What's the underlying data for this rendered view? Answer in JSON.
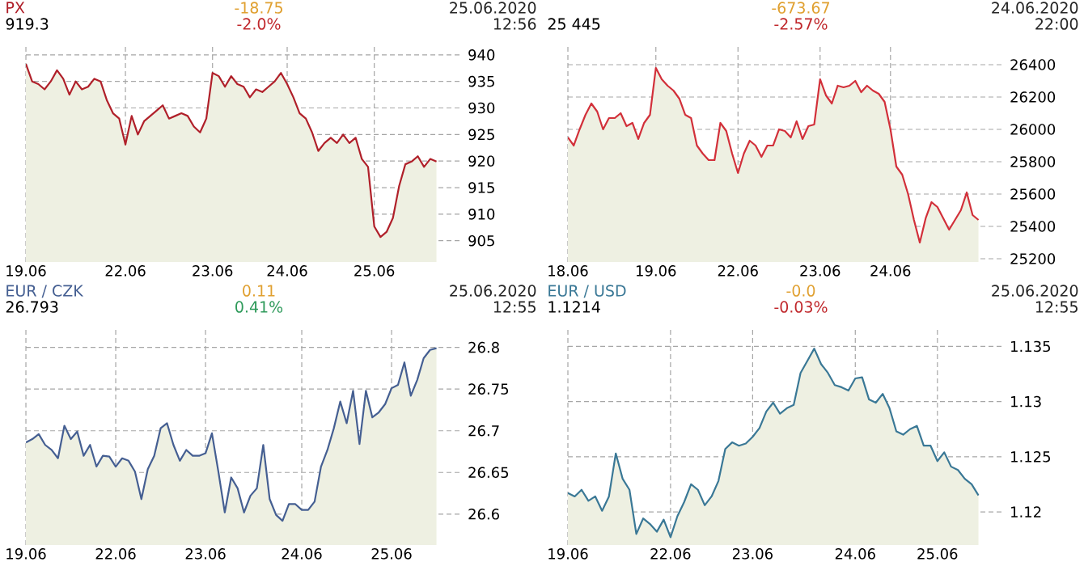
{
  "chart_data": [
    {
      "type": "area",
      "title": "PX",
      "annotations": [
        "919.3",
        "-18.75",
        "-2.0%",
        "25.06.2020",
        "12:56"
      ],
      "color": "#b0202a",
      "grid": true,
      "ylim": [
        901,
        941.5
      ],
      "yticks": [
        905,
        910,
        915,
        920,
        925,
        930,
        935,
        940
      ],
      "categories": [
        "19.06",
        null,
        null,
        null,
        null,
        null,
        null,
        null,
        null,
        null,
        null,
        null,
        null,
        null,
        null,
        null,
        "22.06",
        null,
        null,
        null,
        null,
        null,
        null,
        null,
        null,
        null,
        null,
        null,
        null,
        null,
        "23.06",
        null,
        null,
        null,
        null,
        null,
        null,
        null,
        null,
        null,
        null,
        null,
        "24.06",
        null,
        null,
        null,
        null,
        null,
        null,
        null,
        null,
        null,
        null,
        null,
        null,
        null,
        "25.06",
        null,
        null,
        null,
        null,
        null,
        null,
        null,
        null,
        null,
        null
      ],
      "values": [
        938.3,
        935,
        934.5,
        933.5,
        935,
        937.1,
        935.5,
        932.5,
        935,
        933.5,
        934,
        935.5,
        935,
        931.5,
        929,
        928,
        923.1,
        928.5,
        925,
        927.5,
        928.5,
        929.5,
        930.5,
        928,
        928.5,
        929,
        928.5,
        926.5,
        925.4,
        928,
        936.6,
        936,
        934,
        936,
        934.5,
        934,
        932,
        933.5,
        933,
        934,
        935,
        936.6,
        934.5,
        932,
        929,
        928,
        925.4,
        921.9,
        923.4,
        924.4,
        923.4,
        925,
        923.4,
        924.4,
        920.4,
        918.9,
        907.7,
        905.7,
        906.7,
        909.3,
        915.3,
        919.4,
        919.9,
        920.9,
        918.9,
        920.4,
        919.9
      ]
    },
    {
      "type": "area",
      "annotations": [
        "25 445",
        "-673.67",
        "-2.57%",
        "24.06.2020",
        "22:00"
      ],
      "color": "#d2303a",
      "grid": true,
      "ylim": [
        25180,
        26510
      ],
      "yticks": [
        25200,
        25400,
        25600,
        25800,
        26000,
        26200,
        26400
      ],
      "categories": [
        "18.06",
        null,
        null,
        null,
        null,
        null,
        null,
        null,
        null,
        null,
        null,
        null,
        null,
        null,
        null,
        "19.06",
        null,
        null,
        null,
        null,
        null,
        null,
        null,
        null,
        null,
        null,
        null,
        null,
        null,
        "22.06",
        null,
        null,
        null,
        null,
        null,
        null,
        null,
        null,
        null,
        null,
        null,
        null,
        null,
        "23.06",
        null,
        null,
        null,
        null,
        null,
        null,
        null,
        null,
        null,
        null,
        null,
        "24.06",
        null,
        null,
        null,
        null,
        null,
        null,
        null,
        null,
        null,
        null,
        null,
        null,
        null,
        null,
        null
      ],
      "values": [
        25950,
        25900,
        26000,
        26090,
        26160,
        26110,
        26000,
        26070,
        26070,
        26100,
        26020,
        26040,
        25940,
        26040,
        26090,
        26380,
        26310,
        26270,
        26240,
        26190,
        26090,
        26070,
        25900,
        25850,
        25810,
        25810,
        26040,
        25990,
        25850,
        25730,
        25850,
        25930,
        25900,
        25830,
        25900,
        25900,
        26000,
        25990,
        25950,
        26050,
        25940,
        26020,
        26030,
        26310,
        26210,
        26160,
        26270,
        26260,
        26270,
        26300,
        26230,
        26270,
        26240,
        26220,
        26170,
        26000,
        25770,
        25720,
        25600,
        25440,
        25300,
        25450,
        25550,
        25520,
        25450,
        25380,
        25440,
        25500,
        25610,
        25470,
        25440
      ]
    },
    {
      "type": "area",
      "title": "EUR / CZK",
      "annotations": [
        "26.793",
        "0.11",
        "0.41%",
        "25.06.2020",
        "12:55"
      ],
      "color": "#455f92",
      "grid": true,
      "ylim": [
        26.563,
        26.821
      ],
      "yticks": [
        26.6,
        26.65,
        26.7,
        26.75,
        26.8
      ],
      "categories": [
        "19.06",
        null,
        null,
        null,
        null,
        null,
        null,
        null,
        null,
        null,
        null,
        null,
        null,
        null,
        "22.06",
        null,
        null,
        null,
        null,
        null,
        null,
        null,
        null,
        null,
        null,
        null,
        null,
        null,
        "23.06",
        null,
        null,
        null,
        null,
        null,
        null,
        null,
        null,
        null,
        null,
        null,
        null,
        null,
        null,
        "24.06",
        null,
        null,
        null,
        null,
        null,
        null,
        null,
        null,
        null,
        null,
        null,
        null,
        null,
        "25.06",
        null,
        null,
        null,
        null,
        null,
        null,
        null
      ],
      "values": [
        26.686,
        26.69,
        26.696,
        26.683,
        26.677,
        26.667,
        26.706,
        26.69,
        26.699,
        26.67,
        26.683,
        26.657,
        26.67,
        26.669,
        26.657,
        26.667,
        26.664,
        26.651,
        26.618,
        26.654,
        26.67,
        26.703,
        26.709,
        26.683,
        26.664,
        26.677,
        26.67,
        26.67,
        26.673,
        26.697,
        26.651,
        26.602,
        26.644,
        26.631,
        26.602,
        26.622,
        26.631,
        26.683,
        26.618,
        26.599,
        26.592,
        26.612,
        26.612,
        26.605,
        26.605,
        26.615,
        26.657,
        26.677,
        26.703,
        26.735,
        26.709,
        26.748,
        26.684,
        26.748,
        26.716,
        26.722,
        26.732,
        26.751,
        26.755,
        26.782,
        26.742,
        26.761,
        26.787,
        26.797,
        26.799
      ]
    },
    {
      "type": "area",
      "title": "EUR / USD",
      "annotations": [
        "1.1214",
        "-0.0",
        "-0.03%",
        "25.06.2020",
        "12:55"
      ],
      "color": "#3a7896",
      "grid": true,
      "ylim": [
        1.117,
        1.1365
      ],
      "yticks": [
        1.12,
        1.125,
        1.13,
        1.135
      ],
      "categories": [
        "19.06",
        null,
        null,
        null,
        null,
        null,
        null,
        null,
        null,
        null,
        null,
        null,
        null,
        null,
        null,
        "22.06",
        null,
        null,
        null,
        null,
        null,
        null,
        null,
        null,
        null,
        null,
        null,
        "23.06",
        null,
        null,
        null,
        null,
        null,
        null,
        null,
        null,
        null,
        null,
        null,
        null,
        null,
        null,
        "24.06",
        null,
        null,
        null,
        null,
        null,
        null,
        null,
        null,
        null,
        null,
        null,
        "25.06",
        null,
        null,
        null,
        null,
        null,
        null
      ],
      "values": [
        1.1217,
        1.1214,
        1.122,
        1.121,
        1.1214,
        1.1201,
        1.1214,
        1.1253,
        1.123,
        1.122,
        1.118,
        1.1194,
        1.1189,
        1.1182,
        1.1193,
        1.1177,
        1.1196,
        1.1209,
        1.1225,
        1.122,
        1.1206,
        1.1214,
        1.1228,
        1.1257,
        1.1263,
        1.126,
        1.1262,
        1.1268,
        1.1276,
        1.1291,
        1.1299,
        1.1289,
        1.1294,
        1.1297,
        1.1326,
        1.1337,
        1.1348,
        1.1334,
        1.1326,
        1.1315,
        1.1313,
        1.131,
        1.1321,
        1.1322,
        1.1302,
        1.1299,
        1.1307,
        1.1294,
        1.1273,
        1.127,
        1.1275,
        1.1278,
        1.126,
        1.126,
        1.1246,
        1.1254,
        1.1241,
        1.1238,
        1.123,
        1.1225,
        1.1215
      ]
    }
  ]
}
